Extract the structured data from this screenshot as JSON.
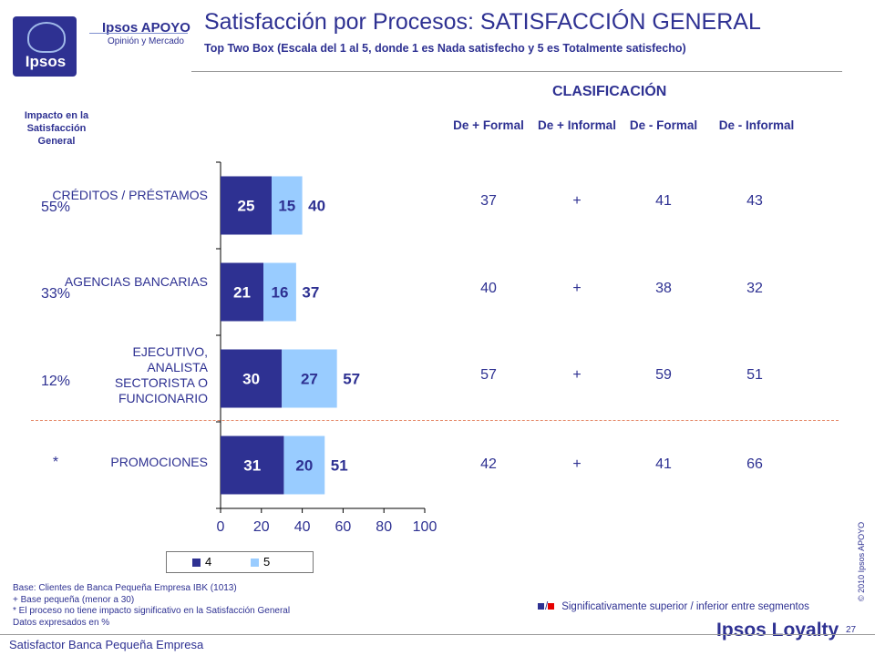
{
  "brand": {
    "logo_text": "Ipsos",
    "name": "Ipsos APOYO",
    "tagline": "Opinión y Mercado"
  },
  "header": {
    "title": "Satisfacción por Procesos: SATISFACCIÓN GENERAL",
    "subtitle": "Top Two Box  (Escala del 1 al 5, donde 1 es Nada satisfecho y 5 es Totalmente satisfecho)"
  },
  "impact_header": "Impacto en la Satisfacción General",
  "classification": {
    "title": "CLASIFICACIÓN",
    "columns": [
      "De + Formal",
      "De + Informal",
      "De - Formal",
      "De - Informal"
    ]
  },
  "rows": [
    {
      "label": "CRÉDITOS / PRÉSTAMOS",
      "impact": "55%",
      "values": [
        "37",
        "+",
        "41",
        "43"
      ]
    },
    {
      "label": "AGENCIAS BANCARIAS",
      "impact": "33%",
      "values": [
        "40",
        "+",
        "38",
        "32"
      ]
    },
    {
      "label": "EJECUTIVO, ANALISTA SECTORISTA O FUNCIONARIO",
      "impact": "12%",
      "values": [
        "57",
        "+",
        "59",
        "51"
      ]
    },
    {
      "label": "PROMOCIONES",
      "impact": "*",
      "values": [
        "42",
        "+",
        "41",
        "66"
      ]
    }
  ],
  "chart_data": {
    "type": "bar",
    "orientation": "horizontal",
    "stacked": true,
    "categories": [
      "CRÉDITOS / PRÉSTAMOS",
      "AGENCIAS BANCARIAS",
      "EJECUTIVO, ANALISTA SECTORISTA O FUNCIONARIO",
      "PROMOCIONES"
    ],
    "series": [
      {
        "name": "4",
        "values": [
          25,
          21,
          30,
          31
        ],
        "color": "#2e3192"
      },
      {
        "name": "5",
        "values": [
          15,
          16,
          27,
          20
        ],
        "color": "#99ccff"
      }
    ],
    "totals": [
      40,
      37,
      57,
      51
    ],
    "xlim": [
      0,
      100
    ],
    "xticks": [
      0,
      20,
      40,
      60,
      80,
      100
    ],
    "legend": "bottom"
  },
  "footnotes": [
    "Base: Clientes de Banca Pequeña Empresa IBK (1013)",
    "+ Base pequeña (menor a 30)",
    "* El proceso no tiene impacto significativo en la Satisfacción General",
    "Datos expresados en %"
  ],
  "significance_legend": "Significativamente superior / inferior entre segmentos",
  "significance_colors": [
    "#2e3192",
    "#e60000"
  ],
  "footer": {
    "text": "Satisfactor Banca Pequeña Empresa",
    "page": "27",
    "copyright": "© 2010 Ipsos APOYO",
    "logo": "Ipsos Loyalty"
  }
}
